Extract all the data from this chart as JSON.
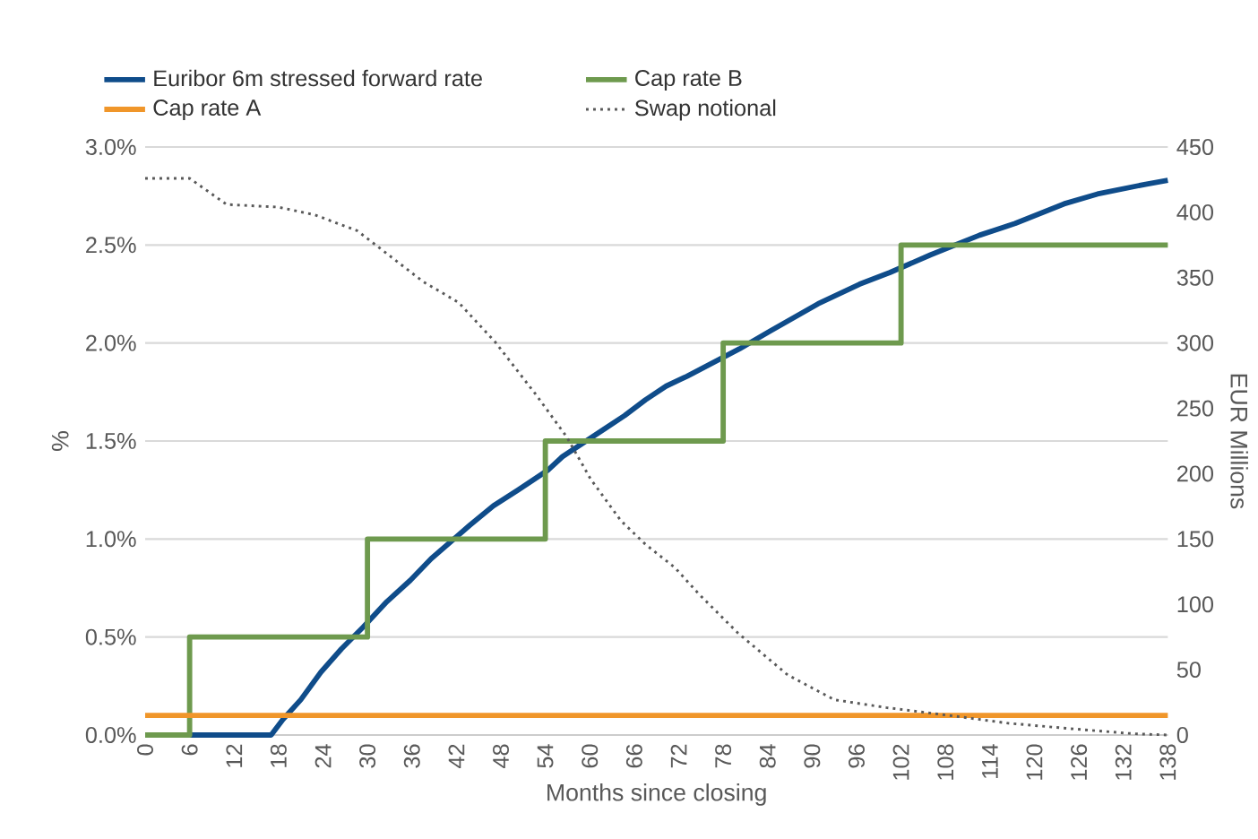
{
  "chart_data": {
    "type": "line",
    "xlabel": "Months since closing",
    "ylabel": "%",
    "y2label": "EUR Millions",
    "xlim": [
      0,
      138
    ],
    "xticks": [
      0,
      6,
      12,
      18,
      24,
      30,
      36,
      42,
      48,
      54,
      60,
      66,
      72,
      78,
      84,
      90,
      96,
      102,
      108,
      114,
      120,
      126,
      132,
      138
    ],
    "ylim": [
      0,
      3
    ],
    "yticks": [
      {
        "value": 0,
        "label": "0.0%"
      },
      {
        "value": 0.5,
        "label": "0.5%"
      },
      {
        "value": 1,
        "label": "1.0%"
      },
      {
        "value": 1.5,
        "label": "1.5%"
      },
      {
        "value": 2,
        "label": "2.0%"
      },
      {
        "value": 2.5,
        "label": "2.5%"
      },
      {
        "value": 3,
        "label": "3.0%"
      }
    ],
    "y2lim": [
      0,
      450
    ],
    "y2ticks": [
      0,
      50,
      100,
      150,
      200,
      250,
      300,
      350,
      400,
      450
    ],
    "grid": "y",
    "legend": "top",
    "marker": "none",
    "series": [
      {
        "name": "Euribor 6m stressed forward rate",
        "color": "#0f4c8a",
        "line_style": "solid",
        "x": [
          0,
          17,
          18.6,
          21,
          23.7,
          26.5,
          29.4,
          32.6,
          35.8,
          38.6,
          43.8,
          47,
          50.3,
          54.3,
          56.3,
          62.3,
          64.7,
          67.5,
          70.3,
          73.1,
          74.6,
          80.2,
          84.3,
          90.8,
          96.4,
          100.5,
          106,
          112.6,
          117.4,
          124,
          128.5,
          135,
          138
        ],
        "values": [
          0,
          0,
          0.08,
          0.18,
          0.32,
          0.44,
          0.55,
          0.68,
          0.79,
          0.9,
          1.07,
          1.17,
          1.25,
          1.35,
          1.42,
          1.57,
          1.63,
          1.71,
          1.78,
          1.83,
          1.86,
          1.97,
          2.06,
          2.2,
          2.3,
          2.36,
          2.45,
          2.55,
          2.61,
          2.71,
          2.76,
          2.81,
          2.83
        ]
      },
      {
        "name": "Cap rate B",
        "color": "#6e9a4e",
        "type": "step",
        "line_style": "solid",
        "x": [
          0,
          6,
          30,
          54,
          78,
          102,
          138
        ],
        "values": [
          0,
          0.5,
          1,
          1.5,
          2,
          2.5,
          2.5
        ]
      },
      {
        "name": "Cap rate A",
        "color": "#f0962a",
        "line_style": "solid",
        "x": [
          0,
          138
        ],
        "values": [
          0.1,
          0.1
        ]
      },
      {
        "name": "Swap notional",
        "color": "#595959",
        "line_style": "dotted",
        "axis": "y2",
        "x": [
          0,
          6,
          11,
          18,
          22.9,
          28.6,
          31.8,
          37.5,
          42.3,
          47.2,
          52.8,
          56.9,
          60.1,
          64.2,
          67.5,
          71.5,
          74.7,
          80,
          86.7,
          93,
          100,
          108.5,
          116.5,
          124.6,
          133.3,
          138
        ],
        "values": [
          426,
          426,
          406,
          404,
          398,
          386,
          372,
          347,
          331,
          301,
          260,
          228,
          196,
          164,
          146,
          128,
          108,
          78,
          46,
          27,
          21,
          15,
          9,
          5,
          1,
          0
        ]
      }
    ]
  }
}
